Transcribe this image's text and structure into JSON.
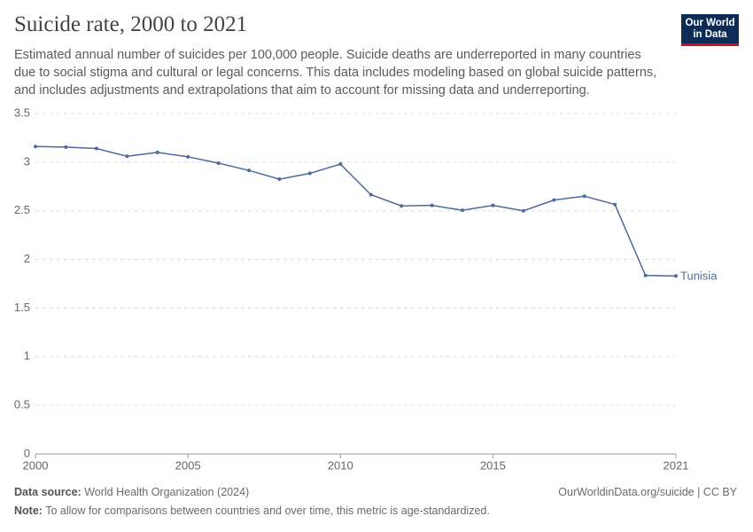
{
  "chart_data": {
    "type": "line",
    "title": "Suicide rate, 2000 to 2021",
    "subtitle": "Estimated annual number of suicides per 100,000 people. Suicide deaths are underreported in many countries due to social stigma and cultural or legal concerns. This data includes modeling based on global suicide patterns, and includes adjustments and extrapolations that aim to account for missing data and underreporting.",
    "logo": [
      "Our World",
      "in Data"
    ],
    "x": [
      2000,
      2001,
      2002,
      2003,
      2004,
      2005,
      2006,
      2007,
      2008,
      2009,
      2010,
      2011,
      2012,
      2013,
      2014,
      2015,
      2016,
      2017,
      2018,
      2019,
      2020,
      2021
    ],
    "series": [
      {
        "name": "Tunisia",
        "color": "#4c6a9c",
        "values": [
          3.16,
          3.155,
          3.14,
          3.06,
          3.1,
          3.055,
          2.99,
          2.915,
          2.825,
          2.885,
          2.98,
          2.665,
          2.55,
          2.555,
          2.505,
          2.555,
          2.5,
          2.61,
          2.65,
          2.565,
          1.835,
          1.83
        ]
      }
    ],
    "xlim": [
      2000,
      2021
    ],
    "xticks": [
      2000,
      2005,
      2010,
      2015,
      2021
    ],
    "ylim": [
      0,
      3.5
    ],
    "yticks": [
      0,
      0.5,
      1,
      1.5,
      2,
      2.5,
      3,
      3.5
    ],
    "grid": true,
    "source_label": "Data source:",
    "source": "World Health Organization (2024)",
    "url": "OurWorldinData.org/suicide | CC BY",
    "note_label": "Note:",
    "note": "To allow for comparisons between countries and over time, this metric is age-standardized."
  }
}
